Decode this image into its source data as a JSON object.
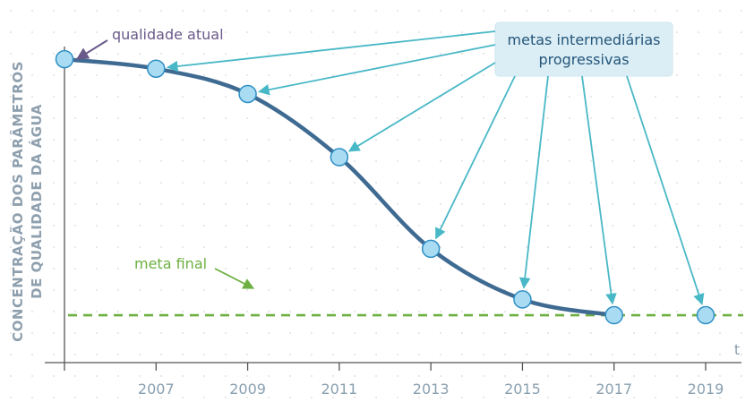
{
  "chart_data": {
    "type": "line",
    "x": [
      2005,
      2007,
      2009,
      2011,
      2013,
      2015,
      2017,
      2019
    ],
    "xticks": [
      "2007",
      "2009",
      "2011",
      "2013",
      "2015",
      "2017",
      "2019"
    ],
    "xlabel": "t",
    "ylabel_lines": [
      "CONCENTRAÇÃO DOS PARÂMETROS",
      "DE QUALIDADE DA ÁGUA"
    ],
    "series": [
      {
        "values": [
          96,
          93,
          85,
          65,
          36,
          20,
          15,
          15
        ]
      }
    ],
    "target_line": {
      "label": "meta final",
      "value": 15
    },
    "annotations": {
      "current": "qualidade atual",
      "callout_lines": [
        "metas intermediárias",
        "progressivas"
      ]
    },
    "ylim": [
      0,
      100
    ],
    "grid": "dotted",
    "colors": {
      "line": "#3f6b92",
      "marker_fill": "#a9dcf3",
      "marker_stroke": "#2e8fc4",
      "target": "#6db041",
      "arrow": "#49b8c6",
      "current_arrow": "#6a5a8a",
      "callout_bg": "#dbeef5",
      "axis": "#555555"
    }
  }
}
